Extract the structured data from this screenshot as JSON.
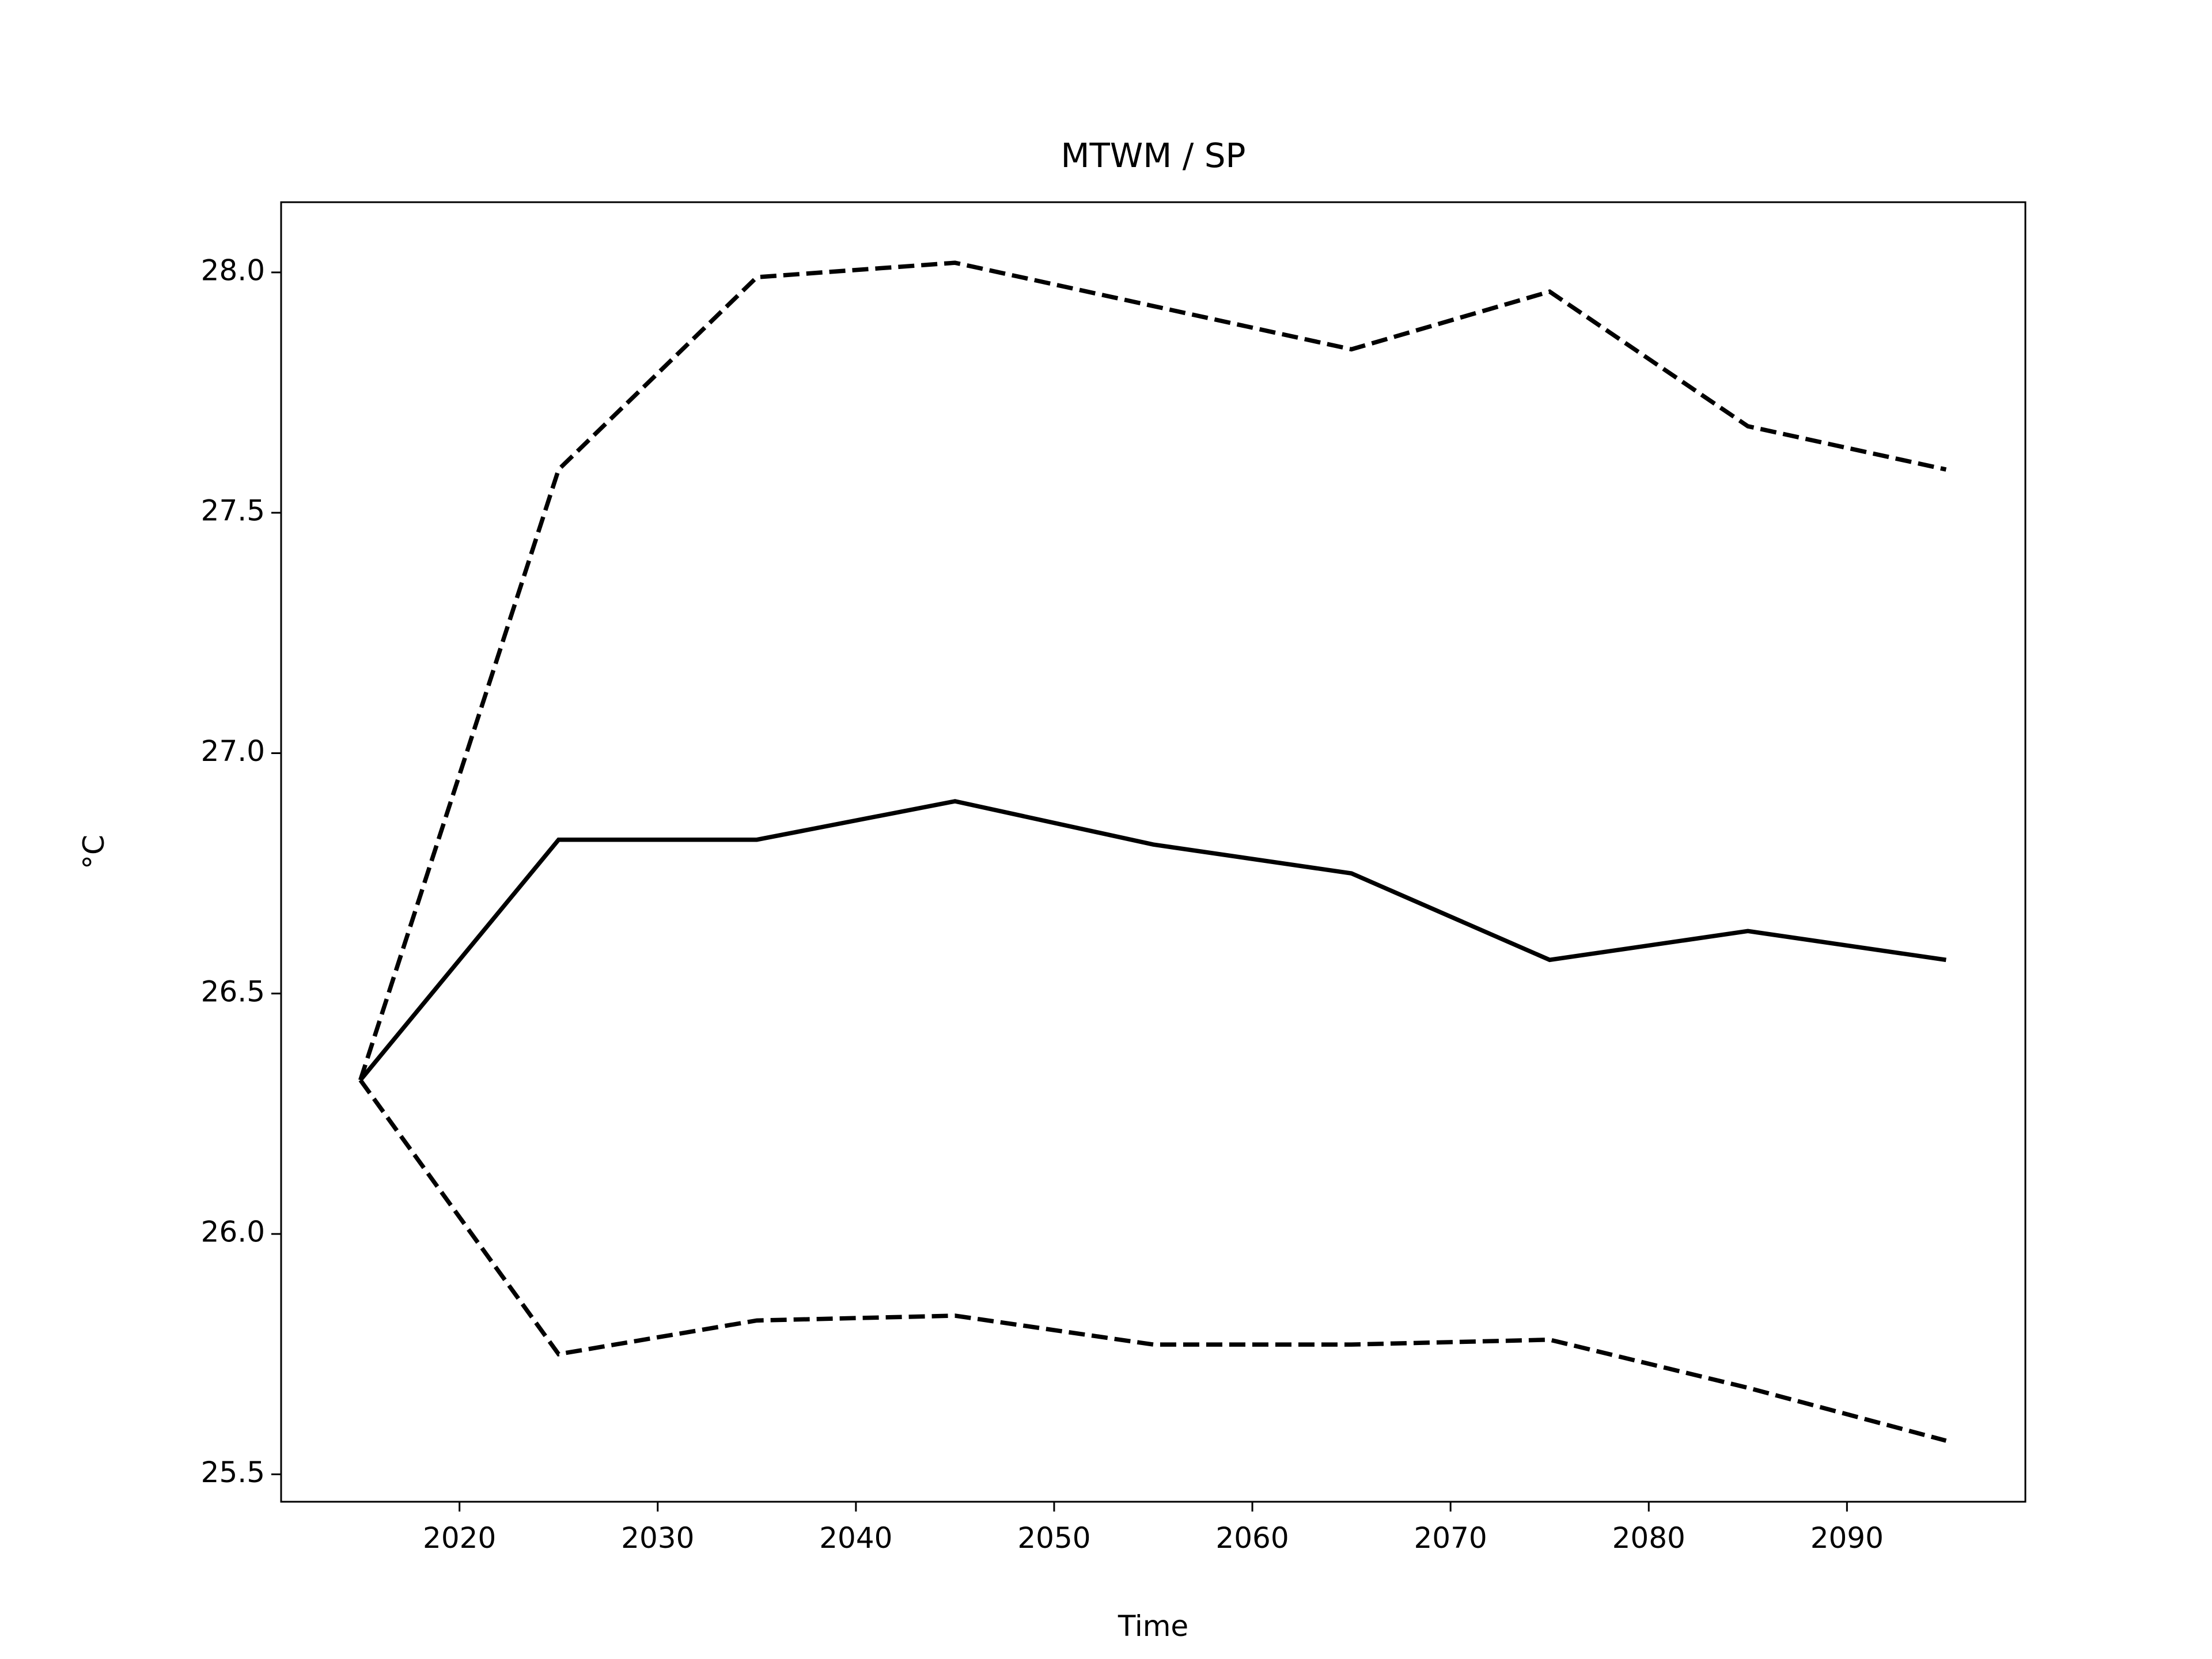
{
  "chart_data": {
    "type": "line",
    "title": "MTWM / SP",
    "xlabel": "Time",
    "ylabel": "°C",
    "x": [
      2015,
      2025,
      2035,
      2045,
      2055,
      2065,
      2075,
      2085,
      2095
    ],
    "series": [
      {
        "color": "#000000",
        "linestyle": "solid",
        "values": [
          26.32,
          26.82,
          26.82,
          26.9,
          26.81,
          26.75,
          26.57,
          26.63,
          26.57
        ]
      },
      {
        "color": "#000000",
        "linestyle": "dashed",
        "values": [
          26.32,
          27.59,
          27.99,
          28.02,
          27.93,
          27.84,
          27.96,
          27.68,
          27.59
        ]
      },
      {
        "color": "#000000",
        "linestyle": "dashed",
        "values": [
          26.32,
          25.75,
          25.82,
          25.83,
          25.77,
          25.77,
          25.78,
          25.68,
          25.57
        ]
      }
    ],
    "xlim": [
      2011,
      2099
    ],
    "ylim": [
      25.443,
      28.146
    ],
    "xticks": [
      2020,
      2030,
      2040,
      2050,
      2060,
      2070,
      2080,
      2090
    ],
    "yticks": [
      25.5,
      {
        "value": 26,
        "label": "26.0"
      },
      26.5,
      {
        "value": 27,
        "label": "27.0"
      },
      27.5,
      {
        "value": 28,
        "label": "28.0"
      }
    ],
    "grid": false
  }
}
